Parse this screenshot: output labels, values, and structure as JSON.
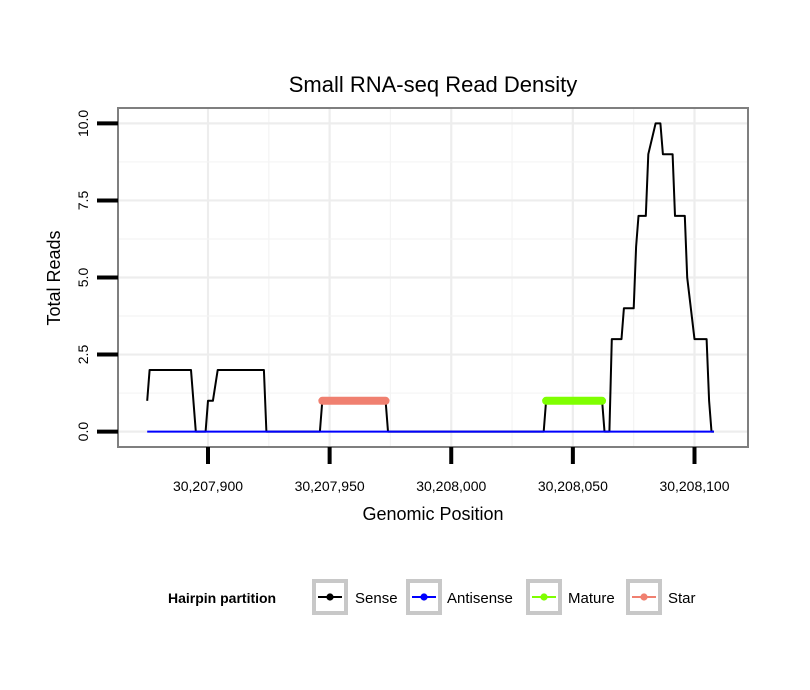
{
  "chart_data": {
    "type": "line",
    "title": "Small RNA-seq Read Density",
    "xlabel": "Genomic Position",
    "ylabel": "Total Reads",
    "xlim": [
      30207863,
      30208122
    ],
    "ylim": [
      -0.5,
      10.5
    ],
    "x_ticks": [
      30207900,
      30207950,
      30208000,
      30208050,
      30208100
    ],
    "x_tick_labels": [
      "30,207,900",
      "30,207,950",
      "30,208,000",
      "30,208,050",
      "30,208,100"
    ],
    "y_ticks": [
      0,
      2.5,
      5,
      7.5,
      10
    ],
    "y_tick_labels": [
      "0.0",
      "2.5",
      "5.0",
      "7.5",
      "10.0"
    ],
    "grid": true,
    "legend": {
      "title": "Hairpin partition",
      "position": "bottom",
      "entries": [
        "Sense",
        "Antisense",
        "Mature",
        "Star"
      ]
    },
    "series": [
      {
        "name": "Sense",
        "color": "#000000",
        "x": [
          30207875,
          30207876,
          30207893,
          30207895,
          30207899,
          30207900,
          30207902,
          30207904,
          30207923,
          30207924,
          30207946,
          30207947,
          30207973,
          30207974,
          30208038,
          30208039,
          30208062,
          30208063,
          30208065,
          30208066,
          30208070,
          30208071,
          30208072,
          30208075,
          30208076,
          30208077,
          30208078,
          30208080,
          30208081,
          30208084,
          30208085,
          30208086,
          30208087,
          30208091,
          30208092,
          30208096,
          30208097,
          30208100,
          30208101,
          30208105,
          30208106,
          30208107,
          30208108
        ],
        "values": [
          1,
          2,
          2,
          0,
          0,
          1,
          1,
          2,
          2,
          0,
          0,
          1,
          1,
          0,
          0,
          1,
          1,
          0,
          0,
          3,
          3,
          4,
          4,
          4,
          6,
          7,
          7,
          7,
          9,
          10,
          10,
          10,
          9,
          9,
          7,
          7,
          5,
          3,
          3,
          3,
          1,
          0,
          0
        ]
      },
      {
        "name": "Antisense",
        "color": "#0000ff",
        "x": [
          30207875,
          30208108
        ],
        "values": [
          0,
          0
        ]
      },
      {
        "name": "Mature",
        "color": "#7fff00",
        "x": [
          30208039,
          30208062
        ],
        "values": [
          1,
          1
        ]
      },
      {
        "name": "Star",
        "color": "#f08070",
        "x": [
          30207947,
          30207973
        ],
        "values": [
          1,
          1
        ]
      }
    ]
  }
}
